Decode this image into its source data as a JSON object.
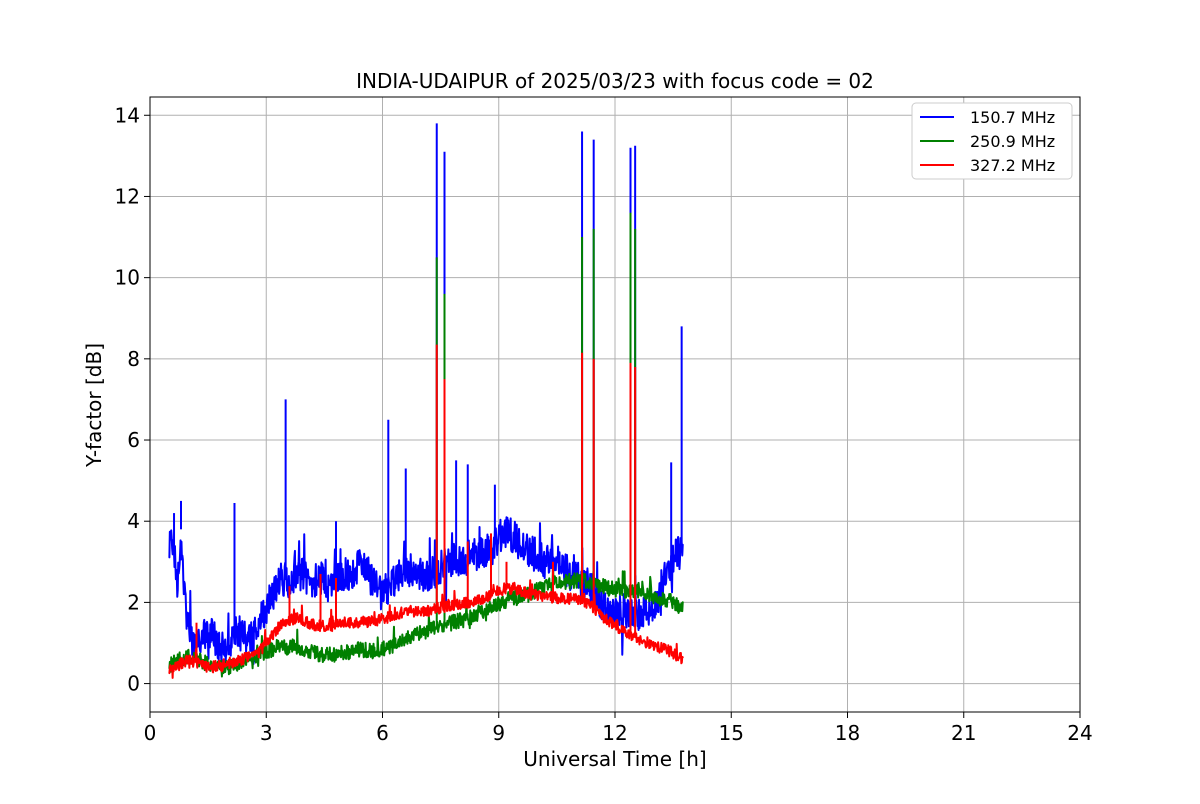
{
  "chart_data": {
    "type": "line",
    "title": "INDIA-UDAIPUR of 2025/03/23 with focus code = 02",
    "xlabel": "Universal Time [h]",
    "ylabel": "Y-factor [dB]",
    "xlim": [
      0,
      24
    ],
    "ylim": [
      -0.7,
      14.45
    ],
    "x_ticks": [
      0,
      3,
      6,
      9,
      12,
      15,
      18,
      21,
      24
    ],
    "x_tick_labels": [
      "0",
      "3",
      "6",
      "9",
      "12",
      "15",
      "18",
      "21",
      "24"
    ],
    "y_ticks": [
      0,
      2,
      4,
      6,
      8,
      10,
      12,
      14
    ],
    "y_tick_labels": [
      "0",
      "2",
      "4",
      "6",
      "8",
      "10",
      "12",
      "14"
    ],
    "grid": true,
    "legend_position": "top-right",
    "x_range_data": [
      0.5,
      13.75
    ],
    "series": [
      {
        "name": "150.7 MHz",
        "color": "#0000ff",
        "points": [
          [
            0.5,
            3.3
          ],
          [
            0.6,
            3.6
          ],
          [
            0.7,
            2.4
          ],
          [
            0.8,
            3.8
          ],
          [
            0.9,
            2.0
          ],
          [
            1.0,
            1.3
          ],
          [
            1.2,
            0.9
          ],
          [
            1.4,
            1.2
          ],
          [
            1.6,
            1.3
          ],
          [
            1.8,
            0.8
          ],
          [
            2.0,
            0.9
          ],
          [
            2.2,
            1.3
          ],
          [
            2.4,
            1.2
          ],
          [
            2.6,
            1.1
          ],
          [
            2.8,
            1.4
          ],
          [
            3.0,
            1.9
          ],
          [
            3.2,
            2.2
          ],
          [
            3.4,
            2.6
          ],
          [
            3.6,
            2.5
          ],
          [
            3.8,
            2.8
          ],
          [
            4.0,
            2.6
          ],
          [
            4.2,
            2.5
          ],
          [
            4.4,
            2.6
          ],
          [
            4.6,
            2.3
          ],
          [
            4.8,
            2.6
          ],
          [
            5.0,
            2.7
          ],
          [
            5.2,
            2.7
          ],
          [
            5.4,
            2.9
          ],
          [
            5.6,
            2.8
          ],
          [
            5.8,
            2.4
          ],
          [
            6.0,
            2.2
          ],
          [
            6.2,
            2.4
          ],
          [
            6.4,
            2.7
          ],
          [
            6.6,
            2.8
          ],
          [
            6.8,
            2.8
          ],
          [
            7.0,
            2.7
          ],
          [
            7.2,
            2.7
          ],
          [
            7.4,
            2.8
          ],
          [
            7.6,
            2.9
          ],
          [
            7.8,
            3.0
          ],
          [
            8.0,
            3.1
          ],
          [
            8.2,
            3.1
          ],
          [
            8.4,
            3.2
          ],
          [
            8.6,
            3.3
          ],
          [
            8.8,
            3.3
          ],
          [
            9.0,
            3.6
          ],
          [
            9.2,
            3.7
          ],
          [
            9.4,
            3.6
          ],
          [
            9.6,
            3.4
          ],
          [
            9.8,
            3.2
          ],
          [
            10.0,
            3.2
          ],
          [
            10.2,
            3.0
          ],
          [
            10.4,
            3.0
          ],
          [
            10.6,
            3.0
          ],
          [
            10.8,
            2.7
          ],
          [
            11.0,
            2.8
          ],
          [
            11.2,
            2.5
          ],
          [
            11.4,
            2.4
          ],
          [
            11.6,
            2.0
          ],
          [
            11.8,
            1.9
          ],
          [
            12.0,
            1.8
          ],
          [
            12.2,
            1.8
          ],
          [
            12.4,
            1.7
          ],
          [
            12.6,
            1.7
          ],
          [
            12.8,
            1.8
          ],
          [
            13.0,
            1.9
          ],
          [
            13.2,
            2.4
          ],
          [
            13.4,
            2.8
          ],
          [
            13.6,
            3.2
          ],
          [
            13.75,
            3.3
          ]
        ],
        "spikes": [
          [
            0.62,
            4.2
          ],
          [
            0.8,
            4.5
          ],
          [
            2.18,
            4.45
          ],
          [
            3.5,
            7.0
          ],
          [
            4.8,
            4.0
          ],
          [
            6.15,
            6.5
          ],
          [
            6.6,
            5.3
          ],
          [
            7.4,
            13.8
          ],
          [
            7.6,
            13.1
          ],
          [
            7.9,
            5.5
          ],
          [
            8.2,
            5.4
          ],
          [
            8.9,
            4.9
          ],
          [
            11.15,
            13.6
          ],
          [
            11.45,
            13.4
          ],
          [
            12.4,
            13.2
          ],
          [
            12.52,
            13.25
          ],
          [
            13.45,
            5.45
          ],
          [
            13.72,
            8.8
          ]
        ]
      },
      {
        "name": "250.9 MHz",
        "color": "#008000",
        "points": [
          [
            0.5,
            0.45
          ],
          [
            0.8,
            0.6
          ],
          [
            1.0,
            0.65
          ],
          [
            1.3,
            0.55
          ],
          [
            1.6,
            0.45
          ],
          [
            2.0,
            0.4
          ],
          [
            2.4,
            0.5
          ],
          [
            2.8,
            0.7
          ],
          [
            3.0,
            0.8
          ],
          [
            3.4,
            0.9
          ],
          [
            3.8,
            0.9
          ],
          [
            4.2,
            0.75
          ],
          [
            4.6,
            0.7
          ],
          [
            5.0,
            0.75
          ],
          [
            5.4,
            0.85
          ],
          [
            5.8,
            0.8
          ],
          [
            6.2,
            0.9
          ],
          [
            6.6,
            1.1
          ],
          [
            7.0,
            1.25
          ],
          [
            7.4,
            1.4
          ],
          [
            7.8,
            1.5
          ],
          [
            8.2,
            1.6
          ],
          [
            8.6,
            1.8
          ],
          [
            9.0,
            1.95
          ],
          [
            9.4,
            2.1
          ],
          [
            9.8,
            2.2
          ],
          [
            10.2,
            2.4
          ],
          [
            10.6,
            2.5
          ],
          [
            11.0,
            2.55
          ],
          [
            11.4,
            2.5
          ],
          [
            11.8,
            2.35
          ],
          [
            12.2,
            2.3
          ],
          [
            12.6,
            2.3
          ],
          [
            13.0,
            2.15
          ],
          [
            13.4,
            2.05
          ],
          [
            13.75,
            1.85
          ]
        ],
        "spikes": [
          [
            7.4,
            10.5
          ],
          [
            7.6,
            9.6
          ],
          [
            11.15,
            11.0
          ],
          [
            11.45,
            11.2
          ],
          [
            12.4,
            11.6
          ],
          [
            12.52,
            11.2
          ]
        ]
      },
      {
        "name": "327.2 MHz",
        "color": "#ff0000",
        "points": [
          [
            0.5,
            0.3
          ],
          [
            0.8,
            0.5
          ],
          [
            1.0,
            0.6
          ],
          [
            1.3,
            0.45
          ],
          [
            1.6,
            0.4
          ],
          [
            2.0,
            0.5
          ],
          [
            2.4,
            0.6
          ],
          [
            2.8,
            0.75
          ],
          [
            3.0,
            1.0
          ],
          [
            3.4,
            1.5
          ],
          [
            3.8,
            1.6
          ],
          [
            4.2,
            1.45
          ],
          [
            4.6,
            1.4
          ],
          [
            5.0,
            1.5
          ],
          [
            5.4,
            1.5
          ],
          [
            5.8,
            1.55
          ],
          [
            6.2,
            1.65
          ],
          [
            6.6,
            1.8
          ],
          [
            7.0,
            1.75
          ],
          [
            7.4,
            1.85
          ],
          [
            7.8,
            1.95
          ],
          [
            8.2,
            2.0
          ],
          [
            8.6,
            2.1
          ],
          [
            9.0,
            2.3
          ],
          [
            9.4,
            2.35
          ],
          [
            9.8,
            2.2
          ],
          [
            10.2,
            2.15
          ],
          [
            10.6,
            2.1
          ],
          [
            11.0,
            2.1
          ],
          [
            11.4,
            1.9
          ],
          [
            11.8,
            1.55
          ],
          [
            12.2,
            1.3
          ],
          [
            12.6,
            1.1
          ],
          [
            13.0,
            0.95
          ],
          [
            13.4,
            0.8
          ],
          [
            13.75,
            0.6
          ]
        ],
        "spikes": [
          [
            1.2,
            1.5
          ],
          [
            3.6,
            2.4
          ],
          [
            4.4,
            2.7
          ],
          [
            4.8,
            2.6
          ],
          [
            7.4,
            8.35
          ],
          [
            7.6,
            7.5
          ],
          [
            8.2,
            3.5
          ],
          [
            8.8,
            3.7
          ],
          [
            9.2,
            3.0
          ],
          [
            10.4,
            3.0
          ],
          [
            11.15,
            8.15
          ],
          [
            11.45,
            8.0
          ],
          [
            12.4,
            7.9
          ],
          [
            12.52,
            7.8
          ]
        ]
      }
    ]
  }
}
